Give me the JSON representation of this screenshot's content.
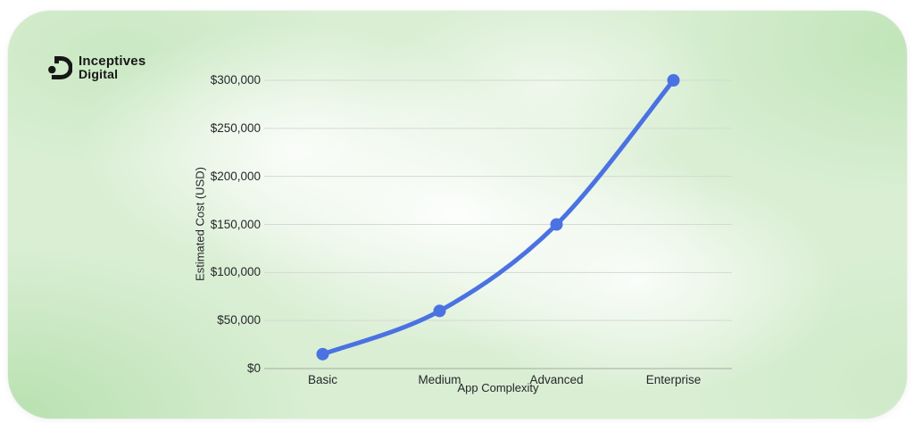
{
  "logo": {
    "line1": "Inceptives",
    "line2": "Digital",
    "icon": "inceptives-digital-monogram"
  },
  "theme": {
    "page_background": "#ffffff",
    "card_background": "#d9eed3",
    "logo_color": "#171717",
    "accent": "#4a72e2"
  },
  "chart_data": {
    "type": "line",
    "title": "",
    "categories": [
      "Basic",
      "Medium",
      "Advanced",
      "Enterprise"
    ],
    "values": [
      15000,
      60000,
      150000,
      300000
    ],
    "xlabel": "App Complexity",
    "ylabel": "Estimated Cost (USD)",
    "ylim": [
      0,
      300000
    ],
    "ytick_step": 50000,
    "ytick_labels": [
      "$0",
      "$50,000",
      "$100,000",
      "$150,000",
      "$200,000",
      "$250,000",
      "$300,000"
    ],
    "grid": true,
    "legend": "none",
    "line_color": "#4a72e2",
    "point_color": "#4a72e2",
    "gridline_color": "#d5d9d3",
    "zero_axis_color": "#a6aba1",
    "label_color": "#25272b"
  }
}
